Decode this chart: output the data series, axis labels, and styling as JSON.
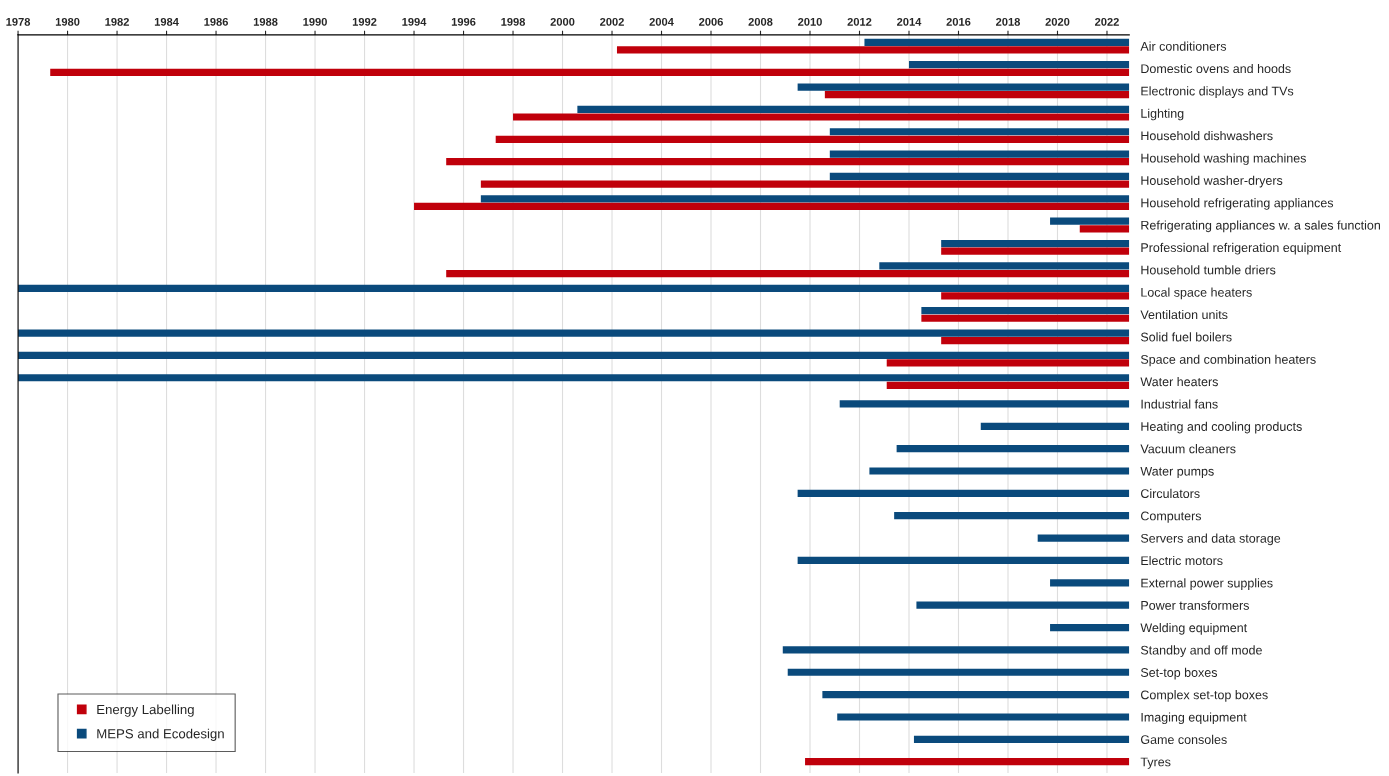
{
  "chart_data": {
    "type": "bar",
    "orientation": "horizontal",
    "categories": [
      "Air conditioners",
      "Domestic ovens and hoods",
      "Electronic displays and TVs",
      "Lighting",
      "Household dishwashers",
      "Household washing machines",
      "Household washer-dryers",
      "Household refrigerating appliances",
      "Refrigerating appliances w. a sales function",
      "Professional refrigeration equipment",
      "Household tumble driers",
      "Local space heaters",
      "Ventilation units",
      "Solid fuel boilers",
      "Space and combination heaters",
      "Water heaters",
      "Industrial fans",
      "Heating and cooling products",
      "Vacuum cleaners",
      "Water pumps",
      "Circulators",
      "Computers",
      "Servers and data storage",
      "Electric motors",
      "External power supplies",
      "Power transformers",
      "Welding equipment",
      "Standby and off mode",
      "Set-top boxes",
      "Complex set-top boxes",
      "Imaging equipment",
      "Game consoles",
      "Tyres"
    ],
    "series": [
      {
        "name": "MEPS and Ecodesign",
        "color": "#0a4a7c",
        "base": [
          2012.2,
          2014.0,
          2009.5,
          2000.6,
          2010.8,
          2010.8,
          2010.8,
          1996.7,
          2019.7,
          2015.3,
          2012.8,
          1978.0,
          2014.5,
          1978.0,
          1978.0,
          1978.0,
          2011.2,
          2016.9,
          2013.5,
          2012.4,
          2009.5,
          2013.4,
          2019.2,
          2009.5,
          2019.7,
          2014.3,
          2019.7,
          2008.9,
          2009.1,
          2010.5,
          2011.1,
          2014.2,
          null
        ],
        "values": [
          10.7,
          8.9,
          13.4,
          22.3,
          12.1,
          12.1,
          12.1,
          26.2,
          3.2,
          7.6,
          10.1,
          44.9,
          8.4,
          44.9,
          44.9,
          44.9,
          11.7,
          6.0,
          9.4,
          10.5,
          13.4,
          9.5,
          3.7,
          13.4,
          3.2,
          8.6,
          3.2,
          14.0,
          13.8,
          12.4,
          11.8,
          8.7,
          null
        ]
      },
      {
        "name": "Energy Labelling",
        "color": "#c0000b",
        "base": [
          2002.2,
          1979.3,
          2010.6,
          1998.0,
          1997.3,
          1995.3,
          1996.7,
          1994.0,
          2020.9,
          2015.3,
          1995.3,
          2015.3,
          2014.5,
          2015.3,
          2013.1,
          2013.1,
          null,
          null,
          null,
          null,
          null,
          null,
          null,
          null,
          null,
          null,
          null,
          null,
          null,
          null,
          null,
          null,
          2009.8
        ],
        "values": [
          20.7,
          43.6,
          12.3,
          24.9,
          25.6,
          27.6,
          26.2,
          28.9,
          2.0,
          7.6,
          27.6,
          7.6,
          8.4,
          7.6,
          9.8,
          9.8,
          null,
          null,
          null,
          null,
          null,
          null,
          null,
          null,
          null,
          null,
          null,
          null,
          null,
          null,
          null,
          null,
          13.1
        ]
      }
    ],
    "xlim": [
      1978,
      2022.9
    ],
    "xticks": [
      1978,
      1980,
      1982,
      1984,
      1986,
      1988,
      1990,
      1992,
      1994,
      1996,
      1998,
      2000,
      2002,
      2004,
      2006,
      2008,
      2010,
      2012,
      2014,
      2016,
      2018,
      2020,
      2022
    ],
    "grid": "x",
    "legend": "bottom left"
  }
}
